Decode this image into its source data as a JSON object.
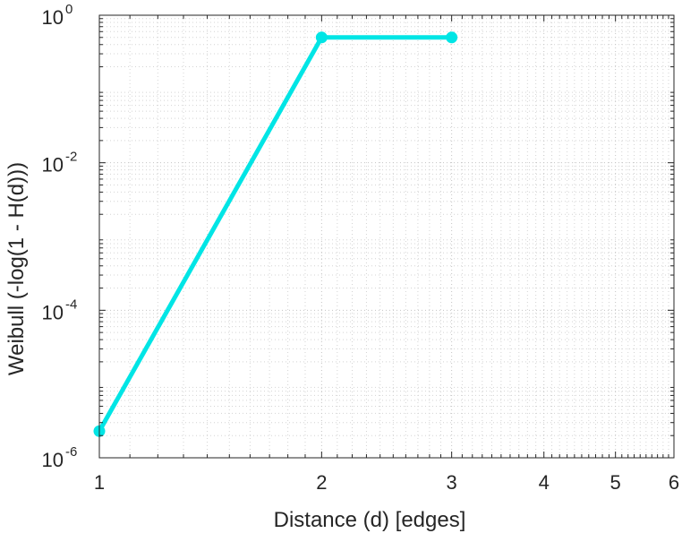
{
  "chart_data": {
    "type": "line",
    "title": "",
    "xlabel": "Distance (d) [edges]",
    "ylabel": "Weibull (-log(1 - H(d)))",
    "x_scale": "log",
    "y_scale": "log",
    "xlim": [
      1,
      6
    ],
    "ylim": [
      1e-06,
      1
    ],
    "grid": true,
    "minor_grid": true,
    "x_ticks": [
      {
        "value": 1,
        "label": "1"
      },
      {
        "value": 2,
        "label": "2"
      },
      {
        "value": 3,
        "label": "3"
      },
      {
        "value": 4,
        "label": "4"
      },
      {
        "value": 5,
        "label": "5"
      },
      {
        "value": 6,
        "label": "6"
      }
    ],
    "y_ticks": [
      {
        "value": 1e-06,
        "base": "10",
        "exp": "-6"
      },
      {
        "value": 0.0001,
        "base": "10",
        "exp": "-4"
      },
      {
        "value": 0.01,
        "base": "10",
        "exp": "-2"
      },
      {
        "value": 1,
        "base": "10",
        "exp": "0"
      }
    ],
    "series": [
      {
        "color": "#00e5e5",
        "markers": true,
        "x": [
          1,
          2,
          3
        ],
        "y": [
          2.3e-06,
          0.5,
          0.5
        ]
      }
    ]
  }
}
